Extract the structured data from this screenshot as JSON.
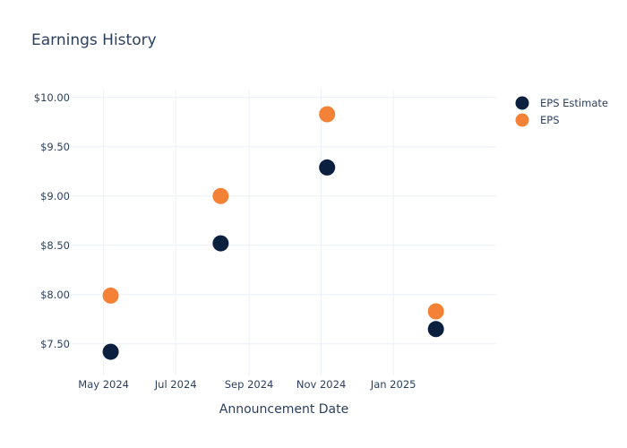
{
  "chart_data": {
    "type": "scatter",
    "title": "Earnings History",
    "xlabel": "Announcement Date",
    "ylabel": "",
    "x_ticks": [
      {
        "date": "2024-05-01",
        "label": "May 2024"
      },
      {
        "date": "2024-07-01",
        "label": "Jul 2024"
      },
      {
        "date": "2024-09-01",
        "label": "Sep 2024"
      },
      {
        "date": "2024-11-01",
        "label": "Nov 2024"
      },
      {
        "date": "2025-01-01",
        "label": "Jan 2025"
      }
    ],
    "y_ticks": [
      {
        "value": 7.5,
        "label": "$7.50"
      },
      {
        "value": 8.0,
        "label": "$8.00"
      },
      {
        "value": 8.5,
        "label": "$8.50"
      },
      {
        "value": 9.0,
        "label": "$9.00"
      },
      {
        "value": 9.5,
        "label": "$9.50"
      },
      {
        "value": 10.0,
        "label": "$10.00"
      }
    ],
    "xlim": [
      "2024-04-04",
      "2025-03-29"
    ],
    "ylim": [
      7.18,
      10.08
    ],
    "grid": true,
    "legend_position": "top-right",
    "series": [
      {
        "name": "EPS Estimate",
        "color": "#0b1f3f",
        "points": [
          {
            "x": "2024-05-07",
            "y": 7.42
          },
          {
            "x": "2024-08-08",
            "y": 8.52
          },
          {
            "x": "2024-11-06",
            "y": 9.29
          },
          {
            "x": "2025-02-06",
            "y": 7.65
          }
        ]
      },
      {
        "name": "EPS",
        "color": "#f48236",
        "points": [
          {
            "x": "2024-05-07",
            "y": 7.99
          },
          {
            "x": "2024-08-08",
            "y": 9.0
          },
          {
            "x": "2024-11-06",
            "y": 9.83
          },
          {
            "x": "2025-02-06",
            "y": 7.83
          }
        ]
      }
    ]
  }
}
